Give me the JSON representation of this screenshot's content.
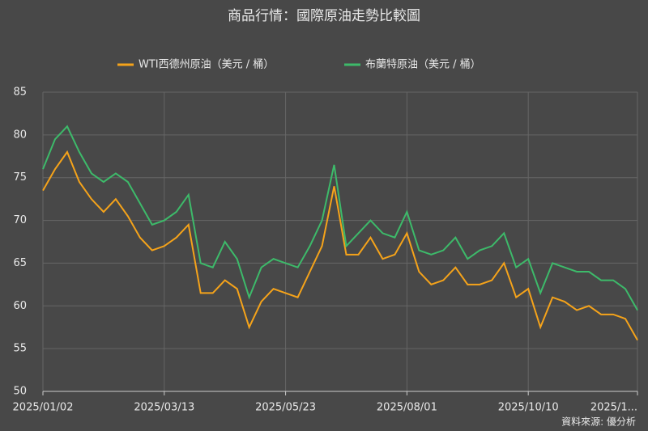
{
  "chart_data": {
    "type": "line",
    "title": "商品行情：國際原油走勢比較圖",
    "source": "資料來源: 優分析",
    "categories": [
      "2025/01/02",
      null,
      null,
      null,
      null,
      null,
      null,
      null,
      null,
      null,
      "2025/03/13",
      null,
      null,
      null,
      null,
      null,
      null,
      null,
      null,
      null,
      "2025/05/23",
      null,
      null,
      null,
      null,
      null,
      null,
      null,
      null,
      null,
      "2025/08/01",
      null,
      null,
      null,
      null,
      null,
      null,
      null,
      null,
      null,
      "2025/10/10",
      null,
      null,
      null,
      null,
      null,
      null,
      null,
      null,
      "2025/1..."
    ],
    "series": [
      {
        "name": "WTI西德州原油（美元 / 桶）",
        "color": "#f5a31a",
        "values": [
          73.5,
          76,
          78,
          74.5,
          72.5,
          71,
          72.5,
          70.5,
          68,
          66.5,
          67,
          68,
          69.5,
          61.5,
          61.5,
          63,
          62,
          57.5,
          60.5,
          62,
          61.5,
          61,
          64,
          67,
          74,
          66,
          66,
          68,
          65.5,
          66,
          68.5,
          64,
          62.5,
          63,
          64.5,
          62.5,
          62.5,
          63,
          65,
          61,
          62,
          57.5,
          61,
          60.5,
          59.5,
          60,
          59,
          59,
          58.5,
          56
        ]
      },
      {
        "name": "布蘭特原油（美元 / 桶）",
        "color": "#3dba6a",
        "values": [
          76,
          79.5,
          81,
          78,
          75.5,
          74.5,
          75.5,
          74.5,
          72,
          69.5,
          70,
          71,
          73,
          65,
          64.5,
          67.5,
          65.5,
          61,
          64.5,
          65.5,
          65,
          64.5,
          67,
          70,
          76.5,
          67,
          68.5,
          70,
          68.5,
          68,
          71,
          66.5,
          66,
          66.5,
          68,
          65.5,
          66.5,
          67,
          68.5,
          64.5,
          65.5,
          61.5,
          65,
          64.5,
          64,
          64,
          63,
          63,
          62,
          59.5
        ]
      }
    ],
    "ylim": [
      50,
      85
    ],
    "yticks": [
      50,
      55,
      60,
      65,
      70,
      75,
      80,
      85
    ],
    "grid": true
  }
}
